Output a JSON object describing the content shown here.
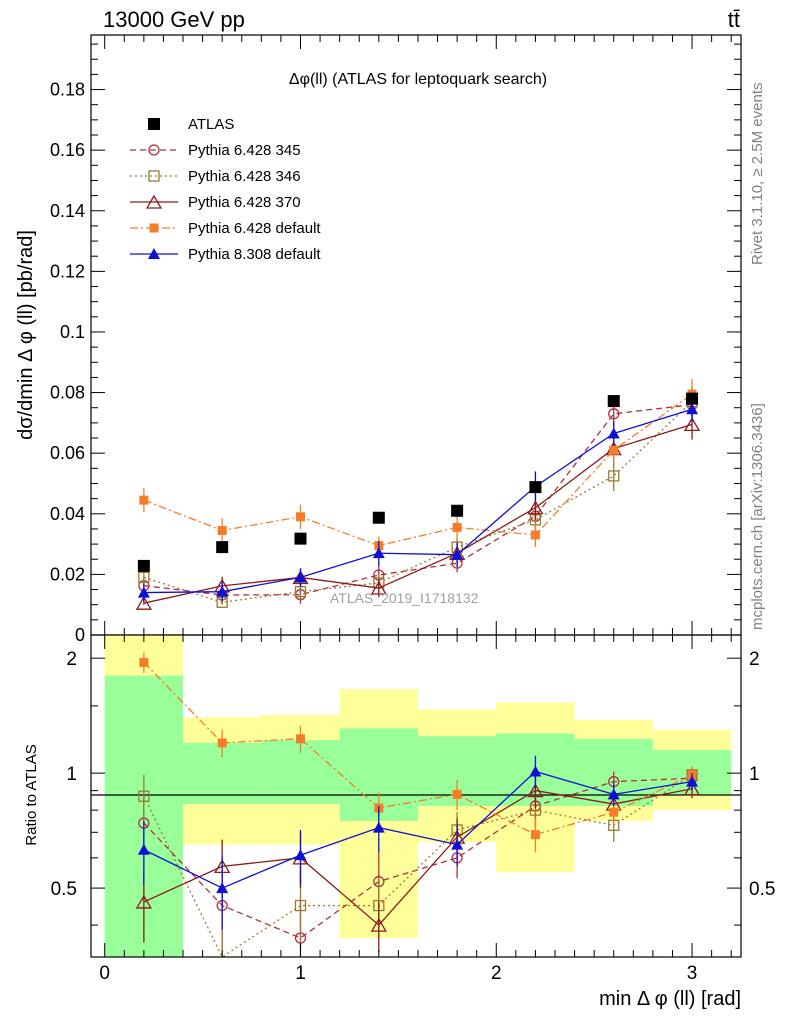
{
  "header": {
    "energy_label": "13000 GeV pp",
    "process_label": "tt̄"
  },
  "side_labels": {
    "rivet": "Rivet 3.1.10, ≥ 2.5M events",
    "mcplots": "mcplots.cern.ch [arXiv:1306.3436]"
  },
  "colors": {
    "ATLAS": "#000000",
    "Pythia 6.428 345": "#b03040",
    "Pythia 6.428 346": "#9a7a30",
    "Pythia 6.428 370": "#8b1a1a",
    "Pythia 6.428 default": "#f57d2a",
    "Pythia 8.308 default": "#1010d0",
    "band_inner": "#99ff99",
    "band_outer": "#ffff99"
  },
  "chart_data": [
    {
      "type": "line",
      "title": "Δφ(ll) (ATLAS for leptoquark search)",
      "ylabel": "dσ/dmin Δ φ (ll) [pb/rad]",
      "watermark": "ATLAS_2019_I1718132",
      "xlim": [
        -0.07,
        3.25
      ],
      "ylim": [
        0,
        0.198
      ],
      "yticks": [
        "0",
        "0.02",
        "0.04",
        "0.06",
        "0.08",
        "0.1",
        "0.12",
        "0.14",
        "0.16",
        "0.18"
      ],
      "x": [
        0.2,
        0.6,
        1.0,
        1.4,
        1.8,
        2.2,
        2.6,
        3.0
      ],
      "series": [
        {
          "name": "ATLAS",
          "marker": "square-filled",
          "line": "none",
          "values": [
            0.0228,
            0.029,
            0.0318,
            0.0387,
            0.041,
            0.0488,
            0.0772,
            0.078
          ]
        },
        {
          "name": "Pythia 6.428 345",
          "marker": "circle-open",
          "line": "dashed",
          "values": [
            0.0163,
            0.0132,
            0.0133,
            0.0198,
            0.0237,
            0.0392,
            0.073,
            0.076
          ],
          "err": [
            0.003,
            0.003,
            0.003,
            0.004,
            0.003,
            0.004,
            0.004,
            0.004
          ]
        },
        {
          "name": "Pythia 6.428 346",
          "marker": "square-open",
          "line": "dotted",
          "values": [
            0.019,
            0.0108,
            0.0143,
            0.0172,
            0.029,
            0.038,
            0.0525,
            0.077
          ],
          "err": [
            0.003,
            0.003,
            0.003,
            0.003,
            0.003,
            0.004,
            0.005,
            0.005
          ]
        },
        {
          "name": "Pythia 6.428 370",
          "marker": "triangle-open",
          "line": "solid",
          "values": [
            0.0105,
            0.0162,
            0.019,
            0.0155,
            0.027,
            0.042,
            0.0615,
            0.0695
          ],
          "err": [
            0.003,
            0.003,
            0.003,
            0.003,
            0.003,
            0.004,
            0.004,
            0.005
          ]
        },
        {
          "name": "Pythia 6.428 default",
          "marker": "square-filled-small",
          "line": "dashdot",
          "values": [
            0.0445,
            0.0345,
            0.039,
            0.0295,
            0.0355,
            0.033,
            0.061,
            0.0795
          ],
          "err": [
            0.004,
            0.004,
            0.004,
            0.003,
            0.004,
            0.004,
            0.004,
            0.005
          ]
        },
        {
          "name": "Pythia 8.308 default",
          "marker": "triangle-filled",
          "line": "solid",
          "values": [
            0.014,
            0.0143,
            0.019,
            0.027,
            0.0265,
            0.049,
            0.0665,
            0.0745
          ],
          "err": [
            0.003,
            0.003,
            0.003,
            0.004,
            0.004,
            0.005,
            0.004,
            0.004
          ]
        }
      ]
    },
    {
      "type": "line",
      "ylabel": "Ratio to ATLAS",
      "xlabel": "min Δ φ (ll) [rad]",
      "xlim": [
        -0.07,
        3.25
      ],
      "ylim": [
        0.33,
        2.3
      ],
      "yticks": [
        "0.5",
        "1",
        "2"
      ],
      "xticks": [
        "0",
        "1",
        "2",
        "3"
      ],
      "x": [
        0.2,
        0.6,
        1.0,
        1.4,
        1.8,
        2.2,
        2.6,
        3.0
      ],
      "bands": {
        "edges": [
          0.0,
          0.4,
          0.8,
          1.2,
          1.6,
          2.0,
          2.4,
          2.8,
          3.2
        ],
        "inner_low": [
          0.33,
          0.83,
          0.83,
          0.75,
          0.82,
          0.82,
          0.82,
          0.88
        ],
        "inner_high": [
          1.8,
          1.2,
          1.22,
          1.31,
          1.25,
          1.27,
          1.23,
          1.15
        ],
        "outer_low": [
          0.33,
          0.65,
          0.65,
          0.37,
          0.66,
          0.55,
          0.75,
          0.8
        ],
        "outer_high": [
          2.3,
          1.4,
          1.42,
          1.66,
          1.47,
          1.53,
          1.38,
          1.3
        ]
      },
      "series": [
        {
          "name": "Pythia 6.428 345",
          "values": [
            0.74,
            0.45,
            0.37,
            0.52,
            0.6,
            0.82,
            0.95,
            0.97
          ],
          "err": [
            0.12,
            0.1,
            0.1,
            0.1,
            0.07,
            0.09,
            0.06,
            0.05
          ]
        },
        {
          "name": "Pythia 6.428 346",
          "values": [
            0.87,
            0.3,
            0.45,
            0.45,
            0.71,
            0.8,
            0.73,
            0.99
          ],
          "err": [
            0.12,
            0.12,
            0.1,
            0.08,
            0.08,
            0.08,
            0.07,
            0.05
          ]
        },
        {
          "name": "Pythia 6.428 370",
          "values": [
            0.46,
            0.57,
            0.6,
            0.4,
            0.68,
            0.9,
            0.83,
            0.91
          ],
          "err": [
            0.1,
            0.1,
            0.1,
            0.06,
            0.08,
            0.09,
            0.06,
            0.05
          ]
        },
        {
          "name": "Pythia 6.428 default",
          "values": [
            1.95,
            1.2,
            1.23,
            0.81,
            0.88,
            0.69,
            0.79,
            0.99
          ],
          "err": [
            0.12,
            0.1,
            0.1,
            0.08,
            0.08,
            0.07,
            0.06,
            0.05
          ]
        },
        {
          "name": "Pythia 8.308 default",
          "values": [
            0.63,
            0.5,
            0.61,
            0.72,
            0.65,
            1.01,
            0.88,
            0.95
          ],
          "err": [
            0.12,
            0.11,
            0.1,
            0.1,
            0.08,
            0.1,
            0.06,
            0.05
          ]
        }
      ]
    }
  ]
}
